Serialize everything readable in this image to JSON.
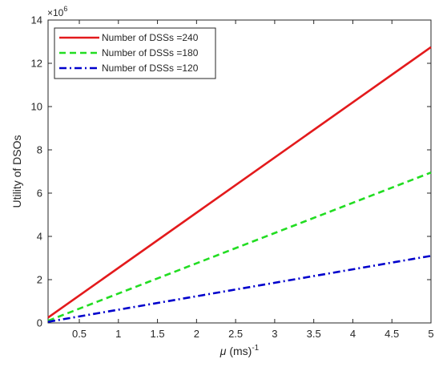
{
  "chart_data": {
    "type": "line",
    "title": "",
    "xlabel_symbol": "μ",
    "xlabel_rest": " (ms)",
    "xlabel_exp": "-1",
    "ylabel": "Utility of DSOs",
    "y_multiplier_base": "×10",
    "y_multiplier_exp": "6",
    "xlim": [
      0.1,
      5
    ],
    "ylim": [
      0,
      14000000
    ],
    "x_ticks": [
      0.5,
      1,
      1.5,
      2,
      2.5,
      3,
      3.5,
      4,
      4.5,
      5
    ],
    "x_tick_labels": [
      "0.5",
      "1",
      "1.5",
      "2",
      "2.5",
      "3",
      "3.5",
      "4",
      "4.5",
      "5"
    ],
    "y_ticks": [
      0,
      2000000,
      4000000,
      6000000,
      8000000,
      10000000,
      12000000,
      14000000
    ],
    "y_tick_labels": [
      "0",
      "2",
      "4",
      "6",
      "8",
      "10",
      "12",
      "14"
    ],
    "grid": false,
    "legend_position": "top-left",
    "series": [
      {
        "name": "Number of DSSs =240",
        "color": "#e31a1c",
        "style": "solid",
        "x": [
          0.1,
          5
        ],
        "y": [
          250000,
          12750000
        ]
      },
      {
        "name": "Number of DSSs =180",
        "color": "#22dd22",
        "style": "dashed",
        "x": [
          0.1,
          5
        ],
        "y": [
          100000,
          6950000
        ]
      },
      {
        "name": "Number of DSSs =120",
        "color": "#0000cc",
        "style": "dashdot",
        "x": [
          0.1,
          5
        ],
        "y": [
          50000,
          3100000
        ]
      }
    ]
  }
}
